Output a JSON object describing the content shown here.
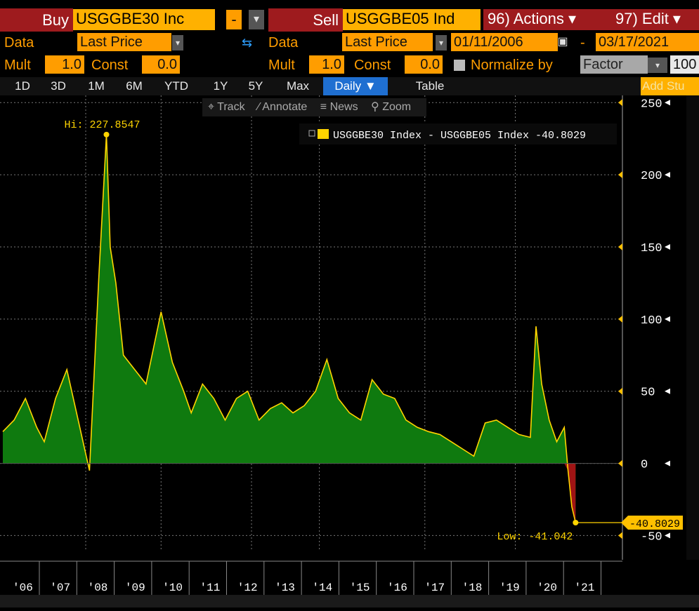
{
  "header": {
    "buy_label": "Buy",
    "buy_ticker": "USGGBE30 Inc",
    "sell_label": "Sell",
    "sell_ticker": "USGGBE05 Ind",
    "actions": "96) Actions ▾",
    "edit": "97) Edit ▾",
    "minus": "-",
    "chevron": "▾",
    "data_label": "Data",
    "data_value_left": "Last Price",
    "data_value_right": "Last Price",
    "start_date": "01/11/2006",
    "end_date": "03/17/2021",
    "date_sep": "-",
    "mult_label": "Mult",
    "mult_left": "1.0",
    "mult_right": "1.0",
    "const_label": "Const",
    "const_left": "0.0",
    "const_right": "0.0",
    "normalize_label": "Normalize by",
    "normalize_value": "Factor",
    "normalize_amount": "100",
    "add_study": "Add Stu",
    "swap_icon": "⇆"
  },
  "range_tabs": [
    "1D",
    "3D",
    "1M",
    "6M",
    "YTD",
    "1Y",
    "5Y",
    "Max"
  ],
  "frequency": "Daily ▼",
  "table_label": "Table",
  "toolbar": {
    "track": "⌖ Track",
    "annotate": "⁄ Annotate",
    "news": "≡ News",
    "zoom": "⚲ Zoom"
  },
  "chart_data": {
    "type": "area",
    "legend": "USGGBE30 Index - USGGBE05 Index -40.8029",
    "hi_label": "Hi: 227.8547",
    "low_label": "Low: -41.042",
    "last_value_label": "-40.8029",
    "ylim": [
      -60,
      255
    ],
    "yticks": [
      250,
      200,
      150,
      100,
      50,
      0,
      -50
    ],
    "xlabels": [
      "'06",
      "'07",
      "'08",
      "'09",
      "'10",
      "'11",
      "'12",
      "'13",
      "'14",
      "'15",
      "'16",
      "'17",
      "'18",
      "'19",
      "'20",
      "'21"
    ],
    "x": [
      2006.0,
      2006.3,
      2006.6,
      2006.9,
      2007.1,
      2007.4,
      2007.7,
      2008.0,
      2008.3,
      2008.55,
      2008.75,
      2008.85,
      2009.0,
      2009.2,
      2009.5,
      2009.8,
      2010.0,
      2010.2,
      2010.5,
      2010.8,
      2011.0,
      2011.3,
      2011.6,
      2011.9,
      2012.2,
      2012.5,
      2012.8,
      2013.1,
      2013.4,
      2013.7,
      2014.0,
      2014.3,
      2014.6,
      2014.9,
      2015.2,
      2015.5,
      2015.8,
      2016.1,
      2016.4,
      2016.7,
      2017.0,
      2017.3,
      2017.6,
      2017.9,
      2018.2,
      2018.5,
      2018.8,
      2019.1,
      2019.4,
      2019.7,
      2020.0,
      2020.15,
      2020.3,
      2020.5,
      2020.7,
      2020.9,
      2021.0,
      2021.1,
      2021.2
    ],
    "y": [
      22,
      30,
      45,
      25,
      15,
      45,
      65,
      30,
      -5,
      130,
      227.85,
      150,
      125,
      75,
      65,
      55,
      80,
      105,
      70,
      50,
      35,
      55,
      45,
      30,
      45,
      50,
      30,
      38,
      42,
      35,
      40,
      50,
      72,
      45,
      35,
      30,
      58,
      48,
      45,
      30,
      25,
      22,
      20,
      15,
      10,
      5,
      28,
      30,
      25,
      20,
      18,
      95,
      55,
      30,
      15,
      25,
      -5,
      -30,
      -41.04
    ],
    "axis_color": "#ffc000",
    "fill_color": "#0f7a0f",
    "line_color": "#ffd400",
    "negative_fill": "#a01414"
  }
}
